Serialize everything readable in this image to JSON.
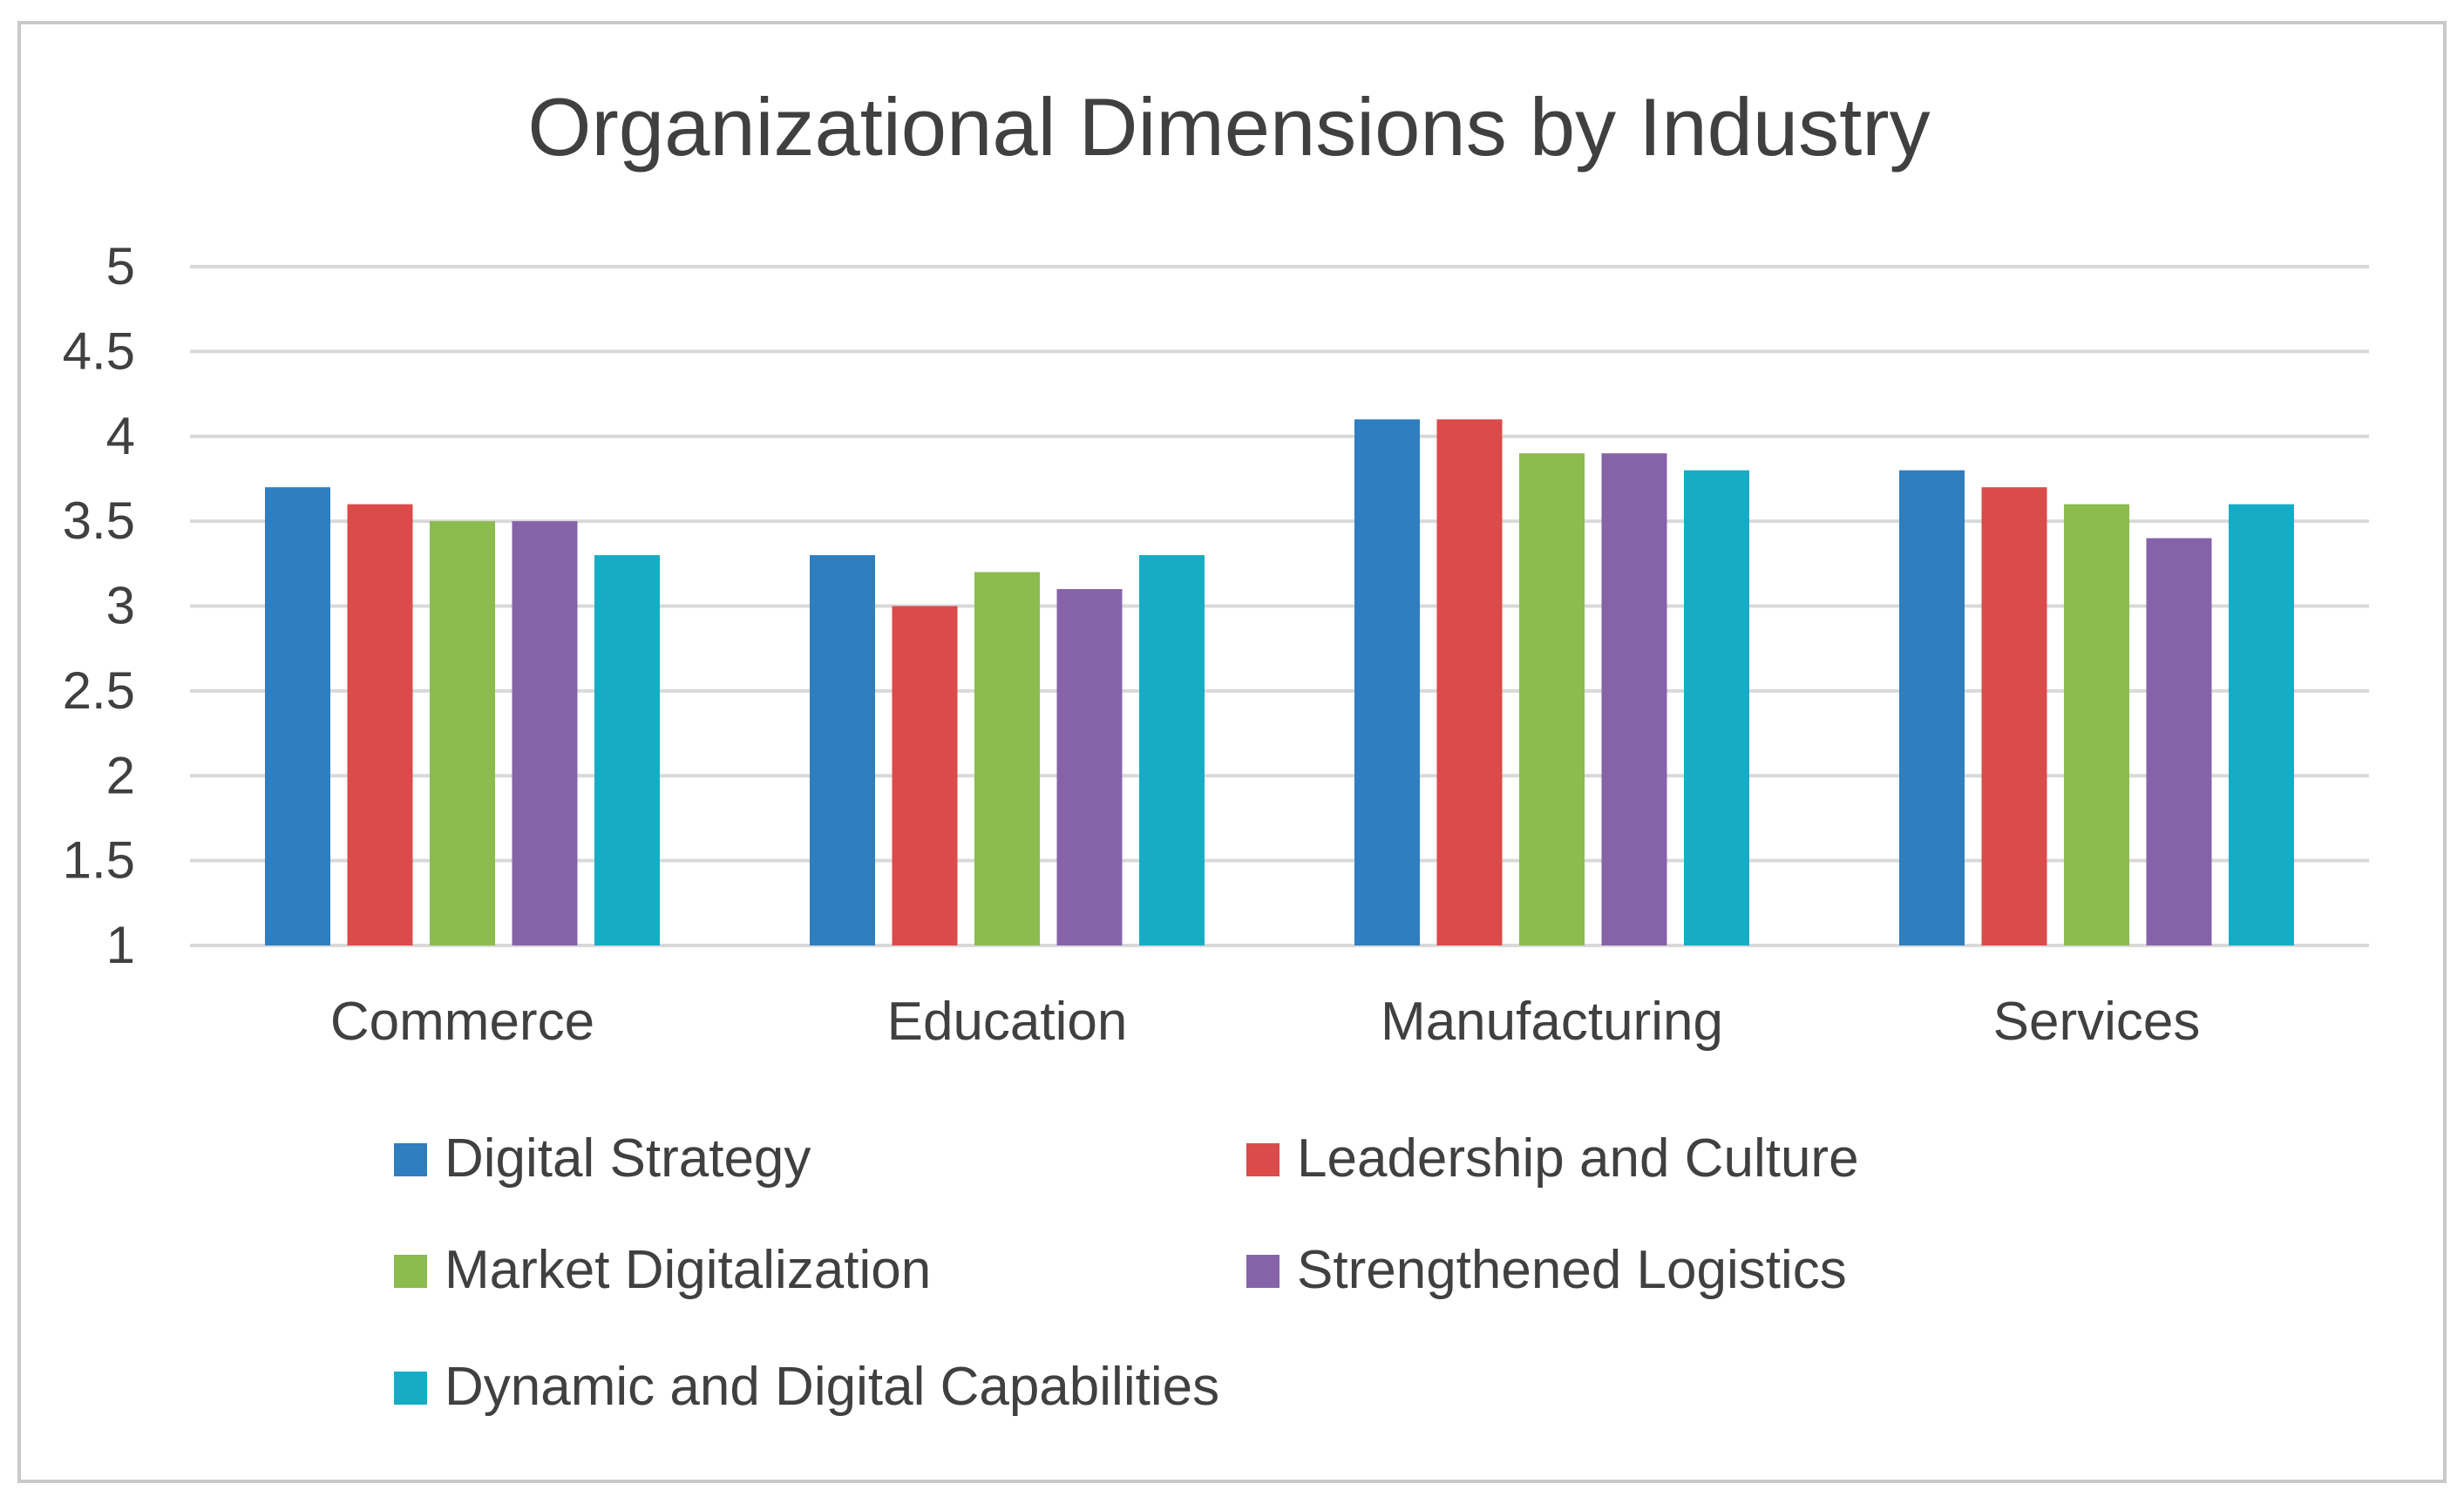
{
  "chart_data": {
    "type": "bar",
    "title": "Organizational Dimensions by Industry",
    "xlabel": "",
    "ylabel": "",
    "ylim": [
      1,
      5
    ],
    "yticks": [
      1,
      1.5,
      2,
      2.5,
      3,
      3.5,
      4,
      4.5,
      5
    ],
    "grid": true,
    "legend_position": "bottom",
    "categories": [
      "Commerce",
      "Education",
      "Manufacturing",
      "Services"
    ],
    "series": [
      {
        "name": "Digital Strategy",
        "color": "#2E7EC0",
        "values": [
          3.7,
          3.3,
          4.1,
          3.8
        ]
      },
      {
        "name": "Leadership and Culture",
        "color": "#DA4B4A",
        "values": [
          3.6,
          3.0,
          4.1,
          3.7
        ]
      },
      {
        "name": "Market Digitalization",
        "color": "#8CBB4E",
        "values": [
          3.5,
          3.2,
          3.9,
          3.6
        ]
      },
      {
        "name": "Strengthened Logistics",
        "color": "#8663A9",
        "values": [
          3.5,
          3.1,
          3.9,
          3.4
        ]
      },
      {
        "name": "Dynamic and Digital Capabilities",
        "color": "#17ACC6",
        "values": [
          3.3,
          3.3,
          3.8,
          3.6
        ]
      }
    ]
  }
}
